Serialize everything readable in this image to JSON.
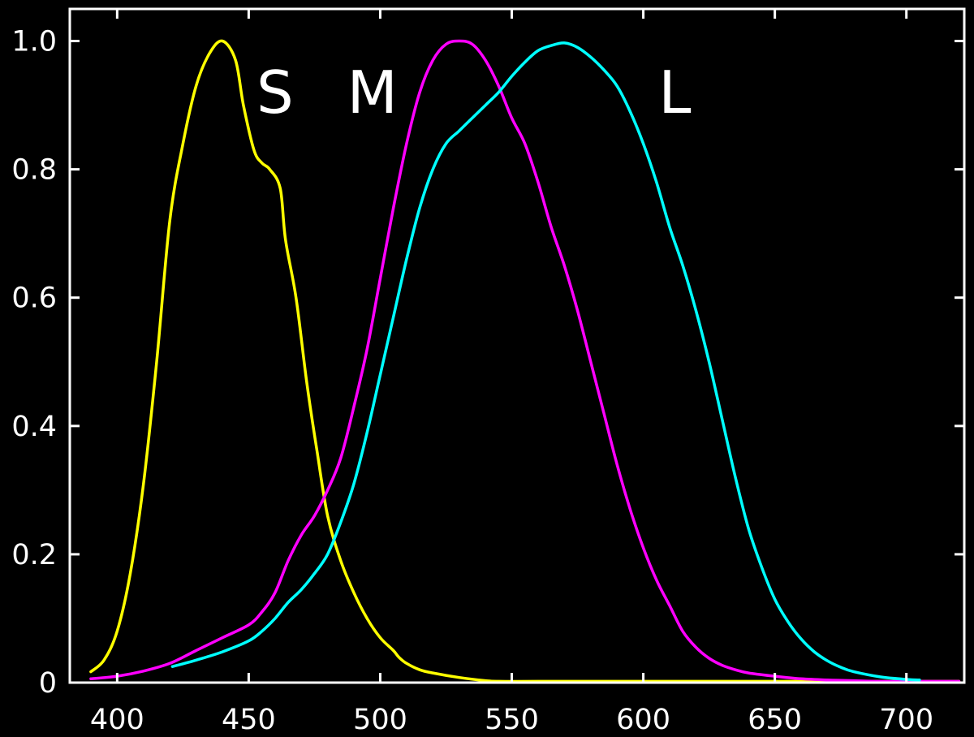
{
  "chart_data": {
    "type": "line",
    "title": "",
    "xlabel": "",
    "ylabel": "",
    "xlim": [
      382,
      722
    ],
    "ylim": [
      0,
      1.05
    ],
    "grid": false,
    "legend": "none",
    "background": "#000000",
    "axis_color": "#ffffff",
    "x_ticks": [
      400,
      450,
      500,
      550,
      600,
      650,
      700
    ],
    "x_tick_labels": [
      "400",
      "450",
      "500",
      "550",
      "600",
      "650",
      "700"
    ],
    "y_ticks": [
      0,
      0.2,
      0.4,
      0.6,
      0.8,
      1.0
    ],
    "y_tick_labels": [
      "0",
      "0.2",
      "0.4",
      "0.6",
      "0.8",
      "1.0"
    ],
    "annotations": [
      {
        "text": "S",
        "x": 460,
        "y": 0.92
      },
      {
        "text": "M",
        "x": 497,
        "y": 0.92
      },
      {
        "text": "L",
        "x": 612,
        "y": 0.92
      }
    ],
    "series": [
      {
        "name": "S",
        "color": "#ffff00",
        "x": [
          390,
          395,
          400,
          405,
          410,
          415,
          420,
          425,
          430,
          435,
          440,
          445,
          448,
          452,
          455,
          458,
          462,
          464,
          468,
          472,
          476,
          480,
          485,
          490,
          495,
          500,
          505,
          507,
          510,
          515,
          520,
          530,
          540,
          545,
          560,
          600,
          650,
          700,
          720
        ],
        "y": [
          0.017,
          0.035,
          0.08,
          0.17,
          0.31,
          0.5,
          0.72,
          0.84,
          0.93,
          0.98,
          1.0,
          0.97,
          0.9,
          0.83,
          0.81,
          0.8,
          0.77,
          0.69,
          0.6,
          0.47,
          0.36,
          0.26,
          0.19,
          0.14,
          0.1,
          0.07,
          0.05,
          0.04,
          0.03,
          0.02,
          0.015,
          0.008,
          0.003,
          0.002,
          0.002,
          0.002,
          0.002,
          0.002,
          0.002
        ]
      },
      {
        "name": "M",
        "color": "#ff00ff",
        "x": [
          390,
          400,
          410,
          420,
          430,
          440,
          450,
          455,
          460,
          465,
          470,
          475,
          480,
          485,
          490,
          495,
          500,
          505,
          510,
          515,
          520,
          525,
          530,
          535,
          540,
          545,
          550,
          555,
          560,
          565,
          570,
          575,
          580,
          585,
          590,
          595,
          600,
          605,
          610,
          615,
          620,
          625,
          630,
          635,
          640,
          650,
          660,
          670,
          680,
          690,
          700,
          720
        ],
        "y": [
          0.006,
          0.01,
          0.018,
          0.03,
          0.05,
          0.07,
          0.09,
          0.11,
          0.14,
          0.19,
          0.23,
          0.26,
          0.3,
          0.35,
          0.43,
          0.52,
          0.63,
          0.74,
          0.84,
          0.92,
          0.97,
          0.995,
          1.0,
          0.995,
          0.97,
          0.93,
          0.88,
          0.84,
          0.78,
          0.71,
          0.65,
          0.58,
          0.5,
          0.42,
          0.34,
          0.27,
          0.21,
          0.16,
          0.12,
          0.08,
          0.055,
          0.038,
          0.027,
          0.02,
          0.015,
          0.01,
          0.006,
          0.004,
          0.003,
          0.002,
          0.002,
          0.002
        ]
      },
      {
        "name": "L",
        "color": "#00ffff",
        "x": [
          421,
          430,
          440,
          450,
          455,
          460,
          465,
          470,
          475,
          480,
          485,
          490,
          495,
          500,
          505,
          510,
          515,
          520,
          525,
          530,
          535,
          540,
          545,
          550,
          555,
          560,
          565,
          570,
          575,
          580,
          585,
          590,
          595,
          600,
          605,
          610,
          615,
          620,
          625,
          630,
          635,
          640,
          645,
          650,
          655,
          660,
          665,
          670,
          675,
          680,
          690,
          700,
          705
        ],
        "y": [
          0.025,
          0.035,
          0.048,
          0.065,
          0.08,
          0.1,
          0.125,
          0.145,
          0.17,
          0.2,
          0.25,
          0.31,
          0.39,
          0.48,
          0.57,
          0.66,
          0.74,
          0.8,
          0.84,
          0.86,
          0.88,
          0.9,
          0.92,
          0.945,
          0.967,
          0.985,
          0.993,
          0.997,
          0.99,
          0.975,
          0.955,
          0.93,
          0.89,
          0.84,
          0.78,
          0.71,
          0.65,
          0.58,
          0.5,
          0.41,
          0.32,
          0.24,
          0.18,
          0.13,
          0.095,
          0.068,
          0.048,
          0.034,
          0.024,
          0.017,
          0.009,
          0.005,
          0.004
        ]
      }
    ]
  }
}
